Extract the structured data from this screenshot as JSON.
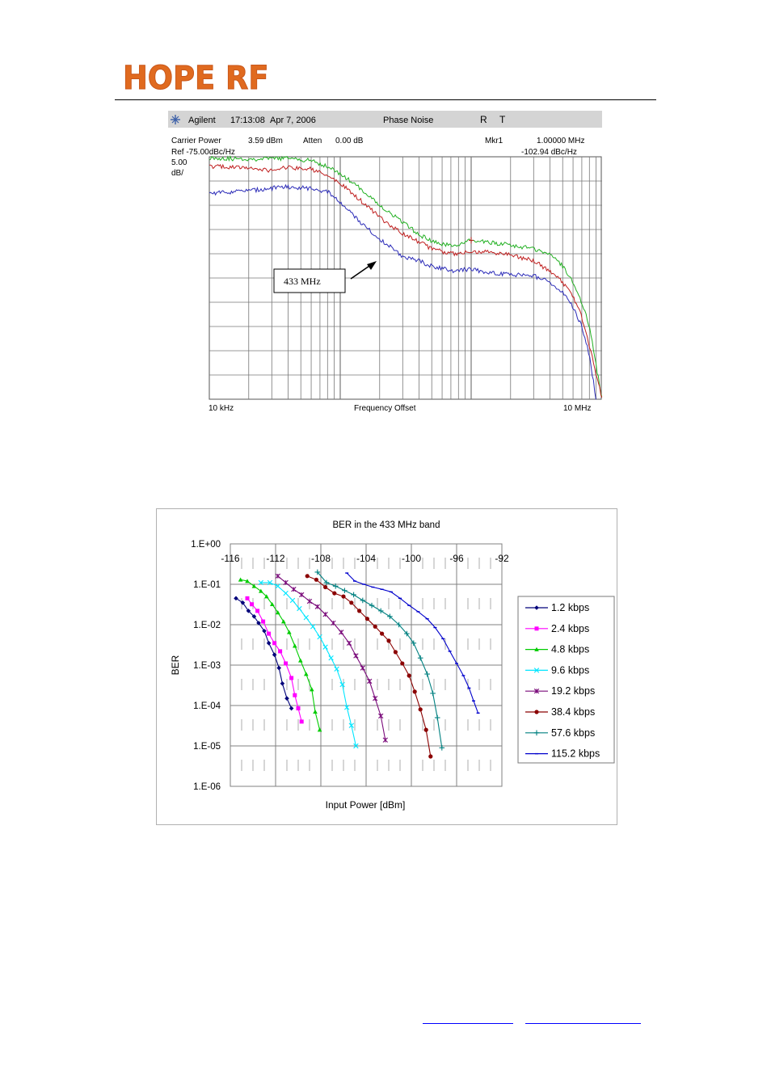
{
  "header": {
    "logo_text": "HOPE RF",
    "logo_color": "#e06a1f"
  },
  "chart_data": [
    {
      "type": "line",
      "instrument": {
        "brand": "Agilent",
        "time": "17:13:08",
        "date": "Apr 7, 2006",
        "mode": "Phase Noise",
        "r_label": "R",
        "t_label": "T",
        "carrier_label": "Carrier Power",
        "carrier_value": "3.59 dBm",
        "atten_label": "Atten",
        "atten_value": "0.00 dB",
        "marker_label": "Mkr1",
        "marker_freq": "1.00000 MHz",
        "marker_level": "-102.94 dBc/Hz",
        "ref_label": "Ref -75.00dBc/Hz",
        "scale_value": "5.00",
        "scale_unit": "dB/"
      },
      "xlabel": "Frequency Offset",
      "x_start_label": "10 kHz",
      "x_stop_label": "10 MHz",
      "x_scale": "log",
      "xlim": [
        10000,
        10000000
      ],
      "ylim": [
        -125,
        -75
      ],
      "annotation": "433 MHz",
      "grid": true,
      "colors": {
        "green": "#22b022",
        "red": "#c02020",
        "blue": "#2b2bb8"
      },
      "series": [
        {
          "color": "green",
          "x": [
            10000,
            20000,
            40000,
            60000,
            80000,
            100000,
            150000,
            200000,
            300000,
            400000,
            500000,
            700000,
            1000000,
            1500000,
            2000000,
            3000000,
            4000000,
            5000000,
            6000000,
            7000000,
            8000000,
            9000000,
            10000000
          ],
          "y": [
            -75.2,
            -75.5,
            -75.3,
            -75.8,
            -77,
            -78.5,
            -82,
            -85,
            -88.5,
            -91,
            -92.5,
            -93.4,
            -92.3,
            -92.8,
            -93.2,
            -94,
            -95,
            -97.5,
            -101,
            -105,
            -110,
            -118,
            -125
          ]
        },
        {
          "color": "red",
          "x": [
            10000,
            20000,
            30000,
            40000,
            60000,
            80000,
            100000,
            150000,
            200000,
            300000,
            400000,
            500000,
            700000,
            1000000,
            1500000,
            2000000,
            3000000,
            4000000,
            5000000,
            6000000,
            7000000,
            8000000,
            10000000
          ],
          "y": [
            -77,
            -77.3,
            -77.8,
            -77.2,
            -77.5,
            -79,
            -80.5,
            -84.5,
            -87.5,
            -91,
            -92.5,
            -94,
            -95,
            -94.5,
            -94.8,
            -95.2,
            -96.5,
            -98.5,
            -101,
            -104,
            -108,
            -114,
            -125
          ]
        },
        {
          "color": "blue",
          "x": [
            10000,
            20000,
            30000,
            40000,
            60000,
            80000,
            100000,
            150000,
            200000,
            300000,
            400000,
            500000,
            700000,
            1000000,
            1500000,
            2000000,
            3000000,
            4000000,
            5000000,
            6000000,
            7000000,
            8000000,
            9000000
          ],
          "y": [
            -82.5,
            -82,
            -81.5,
            -81.2,
            -81.5,
            -82.2,
            -84.5,
            -89,
            -92,
            -95.5,
            -96.5,
            -97.5,
            -98.5,
            -98.2,
            -99,
            -99.3,
            -99.5,
            -101,
            -103,
            -106,
            -110,
            -116,
            -125
          ]
        }
      ]
    },
    {
      "type": "line",
      "title": "BER in the 433 MHz band",
      "xlabel": "Input Power [dBm]",
      "ylabel": "BER",
      "x_ticks": [
        "-116",
        "-112",
        "-108",
        "-104",
        "-100",
        "-96",
        "-92"
      ],
      "y_ticks": [
        "1.E+00",
        "1.E-01",
        "1.E-02",
        "1.E-03",
        "1.E-04",
        "1.E-05",
        "1.E-06"
      ],
      "xlim": [
        -116,
        -92
      ],
      "y_scale": "log",
      "ylim": [
        1e-06,
        1
      ],
      "grid": true,
      "legend_position": "right",
      "series": [
        {
          "name": "1.2 kbps",
          "color": "#00007a",
          "marker": "diamond",
          "x": [
            -115.5,
            -114.9,
            -114.4,
            -113.9,
            -113.5,
            -113.0,
            -112.6,
            -112.1,
            -111.7,
            -111.4,
            -111.0,
            -110.6
          ],
          "y": [
            0.045,
            0.035,
            0.022,
            0.016,
            0.011,
            0.007,
            0.0035,
            0.0018,
            0.00085,
            0.00035,
            0.00015,
            8.5e-05
          ]
        },
        {
          "name": "2.4 kbps",
          "color": "#ff00ff",
          "marker": "square",
          "x": [
            -114.5,
            -114.1,
            -113.6,
            -113.1,
            -112.6,
            -112.1,
            -111.6,
            -111.1,
            -110.6,
            -110.3,
            -110.0,
            -109.7
          ],
          "y": [
            0.045,
            0.032,
            0.022,
            0.012,
            0.006,
            0.0035,
            0.0022,
            0.0011,
            0.00048,
            0.00018,
            8.5e-05,
            4e-05
          ]
        },
        {
          "name": "4.8 kbps",
          "color": "#00cc00",
          "marker": "triangle",
          "x": [
            -115.1,
            -114.5,
            -113.9,
            -113.3,
            -112.8,
            -112.3,
            -111.8,
            -111.3,
            -110.8,
            -110.3,
            -109.8,
            -109.3,
            -108.8,
            -108.5,
            -108.1
          ],
          "y": [
            0.13,
            0.12,
            0.09,
            0.068,
            0.05,
            0.032,
            0.02,
            0.012,
            0.0065,
            0.003,
            0.0013,
            0.0006,
            0.00025,
            7e-05,
            2.5e-05
          ]
        },
        {
          "name": "9.6 kbps",
          "color": "#00e6ff",
          "marker": "x",
          "x": [
            -113.3,
            -112.5,
            -111.8,
            -111.1,
            -110.5,
            -109.9,
            -109.3,
            -108.7,
            -108.1,
            -107.6,
            -107.1,
            -106.6,
            -106.1,
            -105.7,
            -105.3,
            -104.9
          ],
          "y": [
            0.11,
            0.11,
            0.09,
            0.06,
            0.04,
            0.025,
            0.015,
            0.009,
            0.005,
            0.0028,
            0.0015,
            0.0008,
            0.00033,
            9e-05,
            3.2e-05,
            1e-05
          ]
        },
        {
          "name": "19.2 kbps",
          "color": "#7a0a7a",
          "marker": "star",
          "x": [
            -111.8,
            -111.1,
            -110.4,
            -109.7,
            -109.0,
            -108.3,
            -107.6,
            -106.9,
            -106.2,
            -105.5,
            -104.9,
            -104.3,
            -103.7,
            -103.2,
            -102.7,
            -102.3
          ],
          "y": [
            0.16,
            0.11,
            0.075,
            0.055,
            0.038,
            0.028,
            0.018,
            0.011,
            0.0065,
            0.0035,
            0.0017,
            0.00085,
            0.0004,
            0.00015,
            5.5e-05,
            1.4e-05
          ]
        },
        {
          "name": "38.4 kbps",
          "color": "#8b0000",
          "marker": "circle",
          "x": [
            -109.2,
            -108.4,
            -107.6,
            -106.8,
            -106.0,
            -105.3,
            -104.6,
            -103.9,
            -103.2,
            -102.6,
            -102.0,
            -101.4,
            -100.8,
            -100.2,
            -99.7,
            -99.2,
            -98.7,
            -98.3
          ],
          "y": [
            0.16,
            0.13,
            0.085,
            0.06,
            0.05,
            0.035,
            0.022,
            0.014,
            0.009,
            0.006,
            0.004,
            0.0021,
            0.0011,
            0.00055,
            0.00022,
            8e-05,
            2.5e-05,
            5.5e-06
          ]
        },
        {
          "name": "57.6 kbps",
          "color": "#008080",
          "marker": "plus",
          "x": [
            -108.3,
            -107.5,
            -106.7,
            -105.9,
            -105.1,
            -104.3,
            -103.5,
            -102.7,
            -101.9,
            -101.1,
            -100.4,
            -99.8,
            -99.2,
            -98.6,
            -98.1,
            -97.7,
            -97.3
          ],
          "y": [
            0.2,
            0.11,
            0.09,
            0.07,
            0.055,
            0.04,
            0.03,
            0.022,
            0.016,
            0.01,
            0.006,
            0.0035,
            0.0015,
            0.0006,
            0.0002,
            5e-05,
            9e-06
          ]
        },
        {
          "name": "115.2 kbps",
          "color": "#0000cc",
          "marker": "dash",
          "x": [
            -105.7,
            -105.0,
            -104.2,
            -103.4,
            -102.6,
            -101.8,
            -101.0,
            -100.2,
            -99.4,
            -98.6,
            -97.9,
            -97.2,
            -96.6,
            -96.0,
            -95.4,
            -94.9,
            -94.5,
            -94.1
          ],
          "y": [
            0.19,
            0.12,
            0.1,
            0.085,
            0.075,
            0.065,
            0.045,
            0.03,
            0.021,
            0.014,
            0.0085,
            0.0045,
            0.0022,
            0.0011,
            0.00055,
            0.00027,
            0.00013,
            6.5e-05
          ]
        }
      ]
    }
  ]
}
